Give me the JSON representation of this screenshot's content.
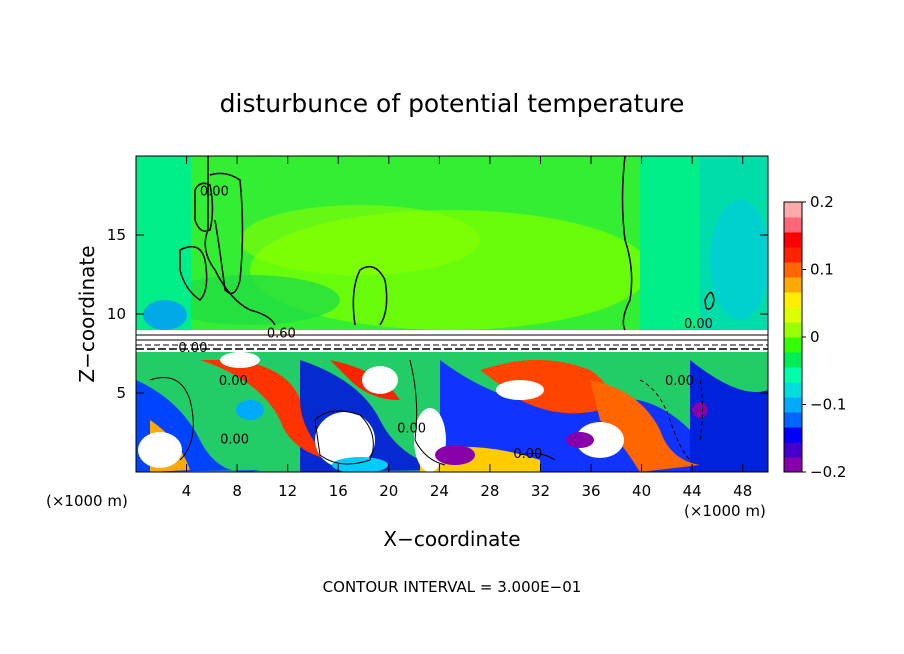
{
  "chart_data": {
    "type": "heatmap",
    "title": "disturbunce of potential temperature",
    "xlabel": "X−coordinate",
    "ylabel": "Z−coordinate",
    "x_unit": "(×1000 m)",
    "y_unit": "(×1000 m)",
    "footer": "CONTOUR INTERVAL = 3.000E−01",
    "xlim": [
      0,
      50
    ],
    "ylim": [
      0,
      20
    ],
    "x_ticks": [
      "4",
      "8",
      "12",
      "16",
      "20",
      "24",
      "28",
      "32",
      "36",
      "40",
      "44",
      "48"
    ],
    "x_tick_values": [
      4,
      8,
      12,
      16,
      20,
      24,
      28,
      32,
      36,
      40,
      44,
      48
    ],
    "y_ticks": [
      "5",
      "10",
      "15"
    ],
    "y_tick_values": [
      5,
      10,
      15
    ],
    "colorbar": {
      "range": [
        -0.2,
        0.2
      ],
      "tick_labels": [
        "0.2",
        "0.1",
        "0",
        "−0.1",
        "−0.2"
      ],
      "tick_values": [
        0.2,
        0.1,
        0,
        -0.1,
        -0.2
      ],
      "colors": [
        "#8800aa",
        "#4400cc",
        "#0000ff",
        "#0066ff",
        "#00aaff",
        "#00dddd",
        "#00ffaa",
        "#00ee55",
        "#33ff00",
        "#99ff00",
        "#ddff00",
        "#ffee00",
        "#ffaa00",
        "#ff6600",
        "#ff2200",
        "#ff0000",
        "#ff6677",
        "#ffaaaa"
      ]
    },
    "contour_labels": [
      {
        "text": "0.60",
        "x": 11.5,
        "z": 8.5
      },
      {
        "text": "0.00",
        "x": 6.2,
        "z": 17.5
      },
      {
        "text": "0.00",
        "x": 44.5,
        "z": 9.1
      },
      {
        "text": "0.00",
        "x": 4.5,
        "z": 7.6
      },
      {
        "text": "0.00",
        "x": 7.7,
        "z": 5.5
      },
      {
        "text": "0.00",
        "x": 7.8,
        "z": 1.8
      },
      {
        "text": "0.00",
        "x": 21.8,
        "z": 2.5
      },
      {
        "text": "0.00",
        "x": 31,
        "z": 0.9
      },
      {
        "text": "0.00",
        "x": 43,
        "z": 5.5
      }
    ]
  }
}
